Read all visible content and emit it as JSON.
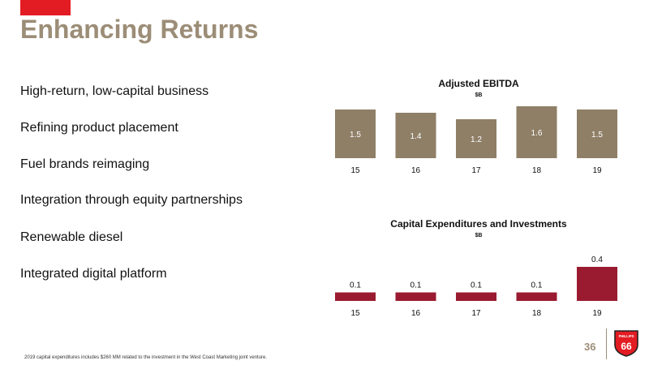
{
  "slide": {
    "title": "Enhancing Returns",
    "bullets": [
      "High-return, low-capital business",
      "Refining product placement",
      "Fuel brands reimaging",
      "Integration through equity partnerships",
      "Renewable diesel",
      "Integrated digital platform"
    ],
    "footnote": "2019 capital expenditures includes $260 MM related to the investment in the West Coast Marketing joint venture.",
    "page_number": "36",
    "logo_text": {
      "top": "PHILLIPS",
      "main": "66"
    }
  },
  "colors": {
    "accent": "#e31c23",
    "tan": "#8f7f67",
    "bar_red": "#9a1b30",
    "title": "#9c8d77"
  },
  "chart_data": [
    {
      "type": "bar",
      "title": "Adjusted EBITDA",
      "subtitle": "$B",
      "categories": [
        "15",
        "16",
        "17",
        "18",
        "19"
      ],
      "values": [
        1.5,
        1.4,
        1.2,
        1.6,
        1.5
      ],
      "color": "#8f7f67",
      "labels_position": "inside"
    },
    {
      "type": "bar",
      "title": "Capital Expenditures and Investments",
      "subtitle": "$B",
      "categories": [
        "15",
        "16",
        "17",
        "18",
        "19"
      ],
      "values": [
        0.1,
        0.1,
        0.1,
        0.1,
        0.4
      ],
      "color": "#9a1b30",
      "labels_position": "above"
    }
  ]
}
